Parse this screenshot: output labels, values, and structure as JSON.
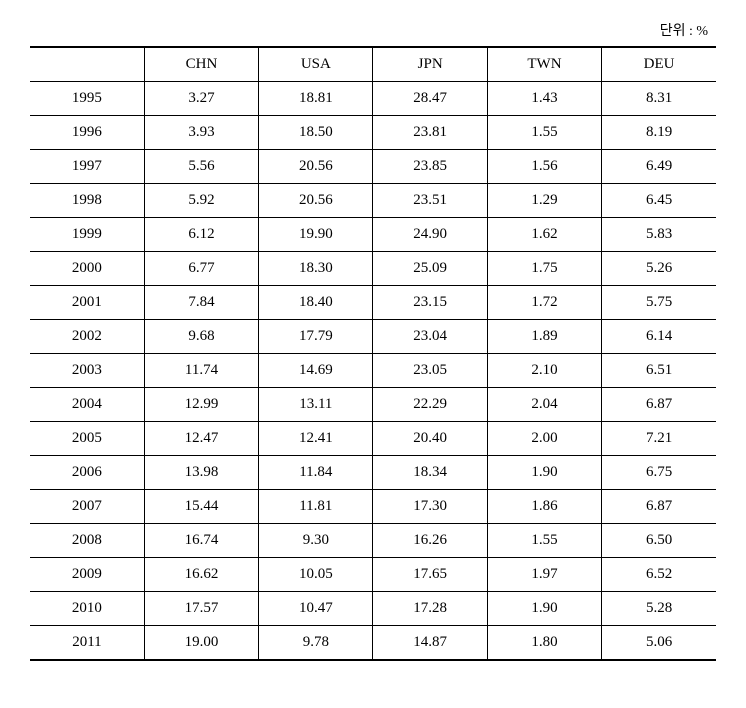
{
  "unit_label": "단위 : %",
  "table": {
    "columns": [
      "",
      "CHN",
      "USA",
      "JPN",
      "TWN",
      "DEU"
    ],
    "rows": [
      {
        "year": "1995",
        "vals": [
          "3.27",
          "18.81",
          "28.47",
          "1.43",
          "8.31"
        ]
      },
      {
        "year": "1996",
        "vals": [
          "3.93",
          "18.50",
          "23.81",
          "1.55",
          "8.19"
        ]
      },
      {
        "year": "1997",
        "vals": [
          "5.56",
          "20.56",
          "23.85",
          "1.56",
          "6.49"
        ]
      },
      {
        "year": "1998",
        "vals": [
          "5.92",
          "20.56",
          "23.51",
          "1.29",
          "6.45"
        ]
      },
      {
        "year": "1999",
        "vals": [
          "6.12",
          "19.90",
          "24.90",
          "1.62",
          "5.83"
        ]
      },
      {
        "year": "2000",
        "vals": [
          "6.77",
          "18.30",
          "25.09",
          "1.75",
          "5.26"
        ]
      },
      {
        "year": "2001",
        "vals": [
          "7.84",
          "18.40",
          "23.15",
          "1.72",
          "5.75"
        ]
      },
      {
        "year": "2002",
        "vals": [
          "9.68",
          "17.79",
          "23.04",
          "1.89",
          "6.14"
        ]
      },
      {
        "year": "2003",
        "vals": [
          "11.74",
          "14.69",
          "23.05",
          "2.10",
          "6.51"
        ]
      },
      {
        "year": "2004",
        "vals": [
          "12.99",
          "13.11",
          "22.29",
          "2.04",
          "6.87"
        ]
      },
      {
        "year": "2005",
        "vals": [
          "12.47",
          "12.41",
          "20.40",
          "2.00",
          "7.21"
        ]
      },
      {
        "year": "2006",
        "vals": [
          "13.98",
          "11.84",
          "18.34",
          "1.90",
          "6.75"
        ]
      },
      {
        "year": "2007",
        "vals": [
          "15.44",
          "11.81",
          "17.30",
          "1.86",
          "6.87"
        ]
      },
      {
        "year": "2008",
        "vals": [
          "16.74",
          "9.30",
          "16.26",
          "1.55",
          "6.50"
        ]
      },
      {
        "year": "2009",
        "vals": [
          "16.62",
          "10.05",
          "17.65",
          "1.97",
          "6.52"
        ]
      },
      {
        "year": "2010",
        "vals": [
          "17.57",
          "10.47",
          "17.28",
          "1.90",
          "5.28"
        ]
      },
      {
        "year": "2011",
        "vals": [
          "19.00",
          "9.78",
          "14.87",
          "1.80",
          "5.06"
        ]
      }
    ],
    "styling": {
      "font_family": "Times New Roman",
      "header_fontsize": 15,
      "cell_fontsize": 15,
      "border_color": "#000000",
      "background_color": "#ffffff",
      "top_border_width": 2,
      "bottom_border_width": 2,
      "row_border_width": 1,
      "col_count": 6,
      "text_align": "center"
    }
  }
}
